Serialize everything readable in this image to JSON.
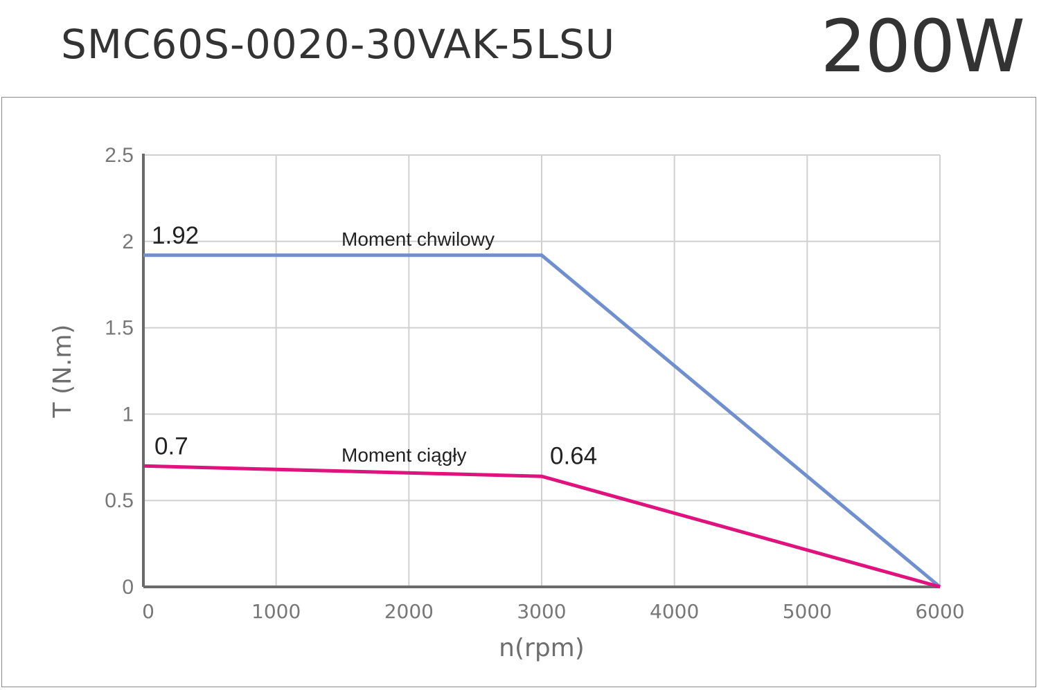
{
  "header": {
    "model": "SMC60S-0020-30VAK-5LSU",
    "power": "200W"
  },
  "chart_data": {
    "type": "line",
    "xlabel": "n(rpm)",
    "ylabel": "T (N.m)",
    "xlim": [
      0,
      6000
    ],
    "ylim": [
      0,
      2.5
    ],
    "x_ticks": [
      "0",
      "1000",
      "2000",
      "3000",
      "4000",
      "5000",
      "6000"
    ],
    "y_ticks": [
      "0",
      "0.5",
      "1",
      "1.5",
      "2",
      "2.5"
    ],
    "grid": true,
    "series": [
      {
        "name": "Moment chwilowy",
        "color": "#6f8fd0",
        "points": [
          [
            0,
            1.92
          ],
          [
            3000,
            1.92
          ],
          [
            6000,
            0
          ]
        ]
      },
      {
        "name": "Moment ciągły",
        "color": "#e0127e",
        "points": [
          [
            0,
            0.7
          ],
          [
            3000,
            0.64
          ],
          [
            6000,
            0
          ]
        ]
      }
    ],
    "annotations": [
      {
        "text": "1.92",
        "x": 0,
        "y": 1.92
      },
      {
        "text": "0.7",
        "x": 0,
        "y": 0.7
      },
      {
        "text": "0.64",
        "x": 3000,
        "y": 0.64
      }
    ]
  }
}
